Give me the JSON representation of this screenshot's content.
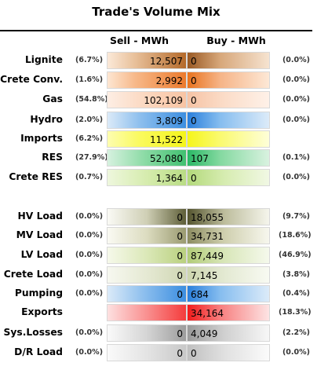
{
  "title": "Trade's Volume Mix",
  "headers": {
    "sell": "Sell - MWh",
    "buy": "Buy - MWh"
  },
  "rows": [
    {
      "label": "Lignite",
      "sell_pct": "(6.7%)",
      "sell": "12,507",
      "buy": "0",
      "buy_pct": "(0.0%)",
      "sell_grad": "linear-gradient(to right,#fbe9d8 0%,#e8c09a 35%,#b46a2a 100%)",
      "buy_grad": "linear-gradient(to right,#9a5a24 0%,#d7a77a 40%,#f6e3d0 100%)"
    },
    {
      "label": "Crete Conv.",
      "sell_pct": "(1.6%)",
      "sell": "2,992",
      "buy": "0",
      "buy_pct": "(0.0%)",
      "sell_grad": "linear-gradient(to right,#fde6d2 0%,#f7b98a 35%,#ec7a2c 100%)",
      "buy_grad": "linear-gradient(to right,#e8731f 0%,#f6b487 40%,#fde8d6 100%)"
    },
    {
      "label": "Gas",
      "sell_pct": "(54.8%)",
      "sell": "102,109",
      "buy": "0",
      "buy_pct": "(0.0%)",
      "sell_grad": "linear-gradient(to right,#fdeee4 0%,#fbd7bf 50%,#f8c4a3 100%)",
      "buy_grad": "linear-gradient(to right,#f6c3a4 0%,#fbdcc8 45%,#fef1e8 100%)"
    },
    {
      "label": "Hydro",
      "sell_pct": "(2.0%)",
      "sell": "3,809",
      "buy": "0",
      "buy_pct": "(0.0%)",
      "sell_grad": "linear-gradient(to right,#dbeaf8 0%,#8fc0ee 40%,#3c8ee0 100%)",
      "buy_grad": "linear-gradient(to right,#2a7fdc 0%,#86bdef 40%,#dcebf9 100%)"
    },
    {
      "label": "Imports",
      "sell_pct": "(6.2%)",
      "sell": "11,522",
      "buy": "",
      "buy_pct": "",
      "sell_grad": "linear-gradient(to right,#fdfdb0 0%,#fafa60 40%,#f5f51a 100%)",
      "buy_grad": "linear-gradient(to right,#f5f51a 0%,#fafa70 40%,#fefed8 100%)"
    },
    {
      "label": "RES",
      "sell_pct": "(27.9%)",
      "sell": "52,080",
      "buy": "107",
      "buy_pct": "(0.1%)",
      "sell_grad": "linear-gradient(to right,#d6f1df 0%,#8fdca8 45%,#41c070 100%)",
      "buy_grad": "linear-gradient(to right,#2ab866 0%,#84d9a0 40%,#d9f2e0 100%)"
    },
    {
      "label": "Crete RES",
      "sell_pct": "(0.7%)",
      "sell": "1,364",
      "buy": "0",
      "buy_pct": "(0.0%)",
      "sell_grad": "linear-gradient(to right,#eef7dd 0%,#d6ecae 50%,#b9dc84 100%)",
      "buy_grad": "linear-gradient(to right,#b3d97b 0%,#d6ecb0 45%,#f1f8e4 100%)"
    },
    {
      "label": "HV Load",
      "sell_pct": "(0.0%)",
      "sell": "0",
      "buy": "18,055",
      "buy_pct": "(9.7%)",
      "sell_grad": "linear-gradient(to right,#fafaf5 0%,#cfcfb5 50%,#5e5e38 100%)",
      "buy_grad": "linear-gradient(to right,#54542e 0%,#bdbd9c 45%,#f5f5ec 100%)"
    },
    {
      "label": "MV Load",
      "sell_pct": "(0.0%)",
      "sell": "0",
      "buy": "34,731",
      "buy_pct": "(18.6%)",
      "sell_grad": "linear-gradient(to right,#fafaf3 0%,#dcdcc0 50%,#9a9a70 100%)",
      "buy_grad": "linear-gradient(to right,#8c8c60 0%,#cfcfae 45%,#f7f7ee 100%)"
    },
    {
      "label": "LV Load",
      "sell_pct": "(0.0%)",
      "sell": "0",
      "buy": "87,449",
      "buy_pct": "(46.9%)",
      "sell_grad": "linear-gradient(to right,#f6f9ea 0%,#dbe8b8 50%,#b9d07e 100%)",
      "buy_grad": "linear-gradient(to right,#b2cc78 0%,#d8e6b8 45%,#f5f9ec 100%)"
    },
    {
      "label": "Crete Load",
      "sell_pct": "(0.0%)",
      "sell": "0",
      "buy": "7,145",
      "buy_pct": "(3.8%)",
      "sell_grad": "linear-gradient(to right,#f7f8f0 0%,#e5e9d3 50%,#cfd6b3 100%)",
      "buy_grad": "linear-gradient(to right,#cdd5ae 0%,#e3e9d2 45%,#f8faf2 100%)"
    },
    {
      "label": "Pumping",
      "sell_pct": "(0.0%)",
      "sell": "0",
      "buy": "684",
      "buy_pct": "(0.4%)",
      "sell_grad": "linear-gradient(to right,#dbeaf8 0%,#8fc0ee 45%,#3c8ee0 100%)",
      "buy_grad": "linear-gradient(to right,#2a7fdc 0%,#86bdef 40%,#dcebf9 100%)"
    },
    {
      "label": "Exports",
      "sell_pct": "",
      "sell": "",
      "buy": "34,164",
      "buy_pct": "(18.3%)",
      "sell_grad": "linear-gradient(to right,#fde0e0 0%,#f99090 50%,#f43c3c 100%)",
      "buy_grad": "linear-gradient(to right,#f21b1b 0%,#f77e7e 40%,#fde4e4 100%)"
    },
    {
      "label": "Sys.Losses",
      "sell_pct": "(0.0%)",
      "sell": "0",
      "buy": "4,049",
      "buy_pct": "(2.2%)",
      "sell_grad": "linear-gradient(to right,#fafafa 0%,#d5d5d5 50%,#9c9c9c 100%)",
      "buy_grad": "linear-gradient(to right,#9a9a9a 0%,#d0d0d0 45%,#f7f7f7 100%)"
    },
    {
      "label": "D/R Load",
      "sell_pct": "(0.0%)",
      "sell": "0",
      "buy": "0",
      "buy_pct": "(0.0%)",
      "sell_grad": "linear-gradient(to right,#fafafa 0%,#e4e4e4 50%,#c8c8c8 100%)",
      "buy_grad": "linear-gradient(to right,#c0c0c0 0%,#e0e0e0 45%,#fbfbfb 100%)"
    }
  ]
}
